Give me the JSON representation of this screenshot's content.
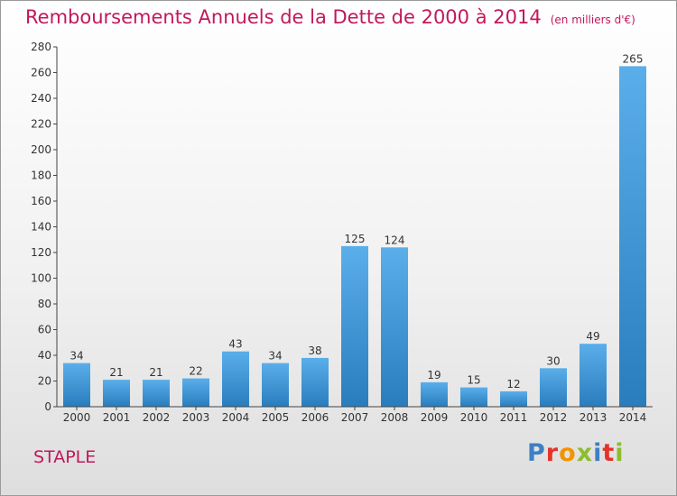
{
  "title": "Remboursements Annuels de la Dette de 2000 à 2014",
  "subtitle": "(en milliers d'€)",
  "commune": "STAPLE",
  "logo": {
    "text": "Proxiti",
    "colors": [
      "#3f7fc4",
      "#e4332a",
      "#f29400",
      "#8cbd2b",
      "#3f7fc4",
      "#e4332a",
      "#8cbd2b"
    ]
  },
  "colors": {
    "bar_light": "#5aaeea",
    "bar_dark": "#2a7dbd",
    "axis": "#444444",
    "grid": "#d2d2d2"
  },
  "chart_data": {
    "type": "bar",
    "title": "Remboursements Annuels de la Dette de 2000 à 2014",
    "categories": [
      "2000",
      "2001",
      "2002",
      "2003",
      "2004",
      "2005",
      "2006",
      "2007",
      "2008",
      "2009",
      "2010",
      "2011",
      "2012",
      "2013",
      "2014"
    ],
    "values": [
      34,
      21,
      21,
      22,
      43,
      34,
      38,
      125,
      124,
      19,
      15,
      12,
      30,
      49,
      265
    ],
    "ylim": [
      0,
      280
    ],
    "yticks": [
      0,
      20,
      40,
      60,
      80,
      100,
      120,
      140,
      160,
      180,
      200,
      220,
      240,
      260,
      280
    ],
    "data_labels": true,
    "grid": false
  }
}
